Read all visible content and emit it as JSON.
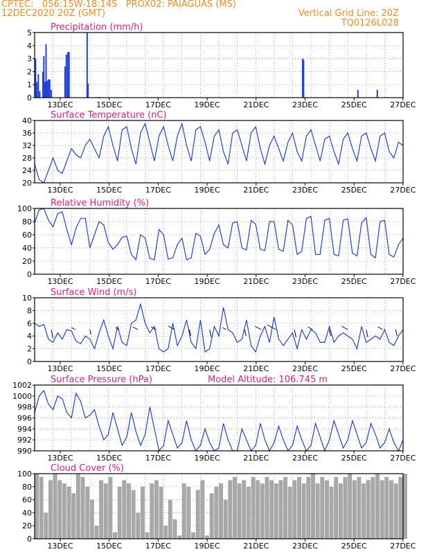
{
  "header": {
    "line1_left": "CPTEC:   056:15W-18:14S   PROX02: PAIAGUAS (MS)",
    "line2_left": "12DEC2020 20Z (GMT)",
    "line1_right": "Vertical Grid Line: 20Z",
    "line2_right": "TQ0126L028"
  },
  "colors": {
    "header": "#f08c28",
    "title": "#e0207a",
    "line": "#2040e0",
    "bar": "#2040e0",
    "cloud": "#a8a8a8",
    "grid": "#888888"
  },
  "x_ticks": [
    "13DEC",
    "15DEC",
    "17DEC",
    "19DEC",
    "21DEC",
    "23DEC",
    "25DEC",
    "27DEC"
  ],
  "chart_data": [
    {
      "type": "bar",
      "title": "Precipitation (mm/h)",
      "ylim": [
        0,
        5
      ],
      "yticks": [
        0,
        1,
        2,
        3,
        4,
        5
      ],
      "x": [
        0.05,
        0.12,
        0.2,
        0.28,
        0.45,
        0.5,
        0.55,
        0.62,
        0.68,
        0.75,
        0.82,
        0.9,
        1.65,
        1.72,
        1.8,
        1.87,
        2.85,
        2.9,
        3.45,
        3.55,
        14.55,
        14.6,
        17.55,
        18.6
      ],
      "values": [
        3.0,
        1.2,
        1.8,
        0.5,
        2.0,
        3.2,
        1.2,
        4.1,
        1.3,
        1.4,
        1.4,
        0.6,
        2.4,
        3.3,
        3.5,
        3.5,
        5.0,
        1.1,
        0.05,
        0.05,
        3.0,
        2.9,
        0.6,
        0.6
      ]
    },
    {
      "type": "line",
      "title": "Surface Temperature (nC)",
      "ylim": [
        20,
        40
      ],
      "yticks": [
        20,
        24,
        28,
        32,
        36,
        40
      ],
      "x": [
        0,
        0.25,
        0.5,
        0.75,
        1,
        1.25,
        1.5,
        1.75,
        2,
        2.25,
        2.5,
        2.75,
        3,
        3.25,
        3.5,
        3.75,
        4,
        4.25,
        4.5,
        4.75,
        5,
        5.25,
        5.5,
        5.75,
        6,
        6.25,
        6.5,
        6.75,
        7,
        7.25,
        7.5,
        7.75,
        8,
        8.25,
        8.5,
        8.75,
        9,
        9.25,
        9.5,
        9.75,
        10,
        10.25,
        10.5,
        10.75,
        11,
        11.25,
        11.5,
        11.75,
        12,
        12.25,
        12.5,
        12.75,
        13,
        13.25,
        13.5,
        13.75,
        14,
        14.25,
        14.5,
        14.75,
        15,
        15.25,
        15.5,
        15.75,
        16,
        16.25,
        16.5,
        16.75,
        17,
        17.25,
        17.5,
        17.75,
        18,
        18.25,
        18.5,
        18.75,
        19,
        19.25,
        19.5,
        19.75,
        20
      ],
      "values": [
        26,
        21,
        20,
        24,
        28,
        24,
        23,
        27,
        31,
        29,
        28,
        32,
        34,
        31,
        28,
        35,
        38,
        32,
        27,
        37,
        38,
        31,
        26,
        36,
        39,
        33,
        27,
        35,
        38,
        32,
        27,
        35,
        39,
        32,
        27,
        37,
        38,
        33,
        27,
        35,
        37,
        30,
        26,
        36,
        37,
        32,
        27,
        36,
        38,
        31,
        26,
        32,
        35,
        31,
        27,
        33,
        36,
        30,
        27,
        35,
        37,
        32,
        27,
        34,
        35,
        30,
        26,
        34,
        36,
        31,
        27,
        35,
        36,
        31,
        27,
        35,
        36,
        30,
        28,
        33,
        32
      ]
    },
    {
      "type": "line",
      "title": "Relative Humidity (%)",
      "ylim": [
        0,
        100
      ],
      "yticks": [
        0,
        20,
        40,
        60,
        80,
        100
      ],
      "x": [
        0,
        0.25,
        0.5,
        0.75,
        1,
        1.25,
        1.5,
        1.75,
        2,
        2.25,
        2.5,
        2.75,
        3,
        3.25,
        3.5,
        3.75,
        4,
        4.25,
        4.5,
        4.75,
        5,
        5.25,
        5.5,
        5.75,
        6,
        6.25,
        6.5,
        6.75,
        7,
        7.25,
        7.5,
        7.75,
        8,
        8.25,
        8.5,
        8.75,
        9,
        9.25,
        9.5,
        9.75,
        10,
        10.25,
        10.5,
        10.75,
        11,
        11.25,
        11.5,
        11.75,
        12,
        12.25,
        12.5,
        12.75,
        13,
        13.25,
        13.5,
        13.75,
        14,
        14.25,
        14.5,
        14.75,
        15,
        15.25,
        15.5,
        15.75,
        16,
        16.25,
        16.5,
        16.75,
        17,
        17.25,
        17.5,
        17.75,
        18,
        18.25,
        18.5,
        18.75,
        19,
        19.25,
        19.5,
        19.75,
        20
      ],
      "values": [
        78,
        98,
        100,
        82,
        72,
        92,
        95,
        68,
        45,
        70,
        85,
        85,
        40,
        60,
        80,
        75,
        48,
        38,
        45,
        56,
        58,
        30,
        22,
        60,
        55,
        24,
        22,
        68,
        60,
        23,
        25,
        45,
        55,
        22,
        25,
        62,
        58,
        30,
        38,
        62,
        75,
        45,
        40,
        78,
        80,
        40,
        37,
        82,
        76,
        38,
        36,
        80,
        80,
        38,
        35,
        82,
        75,
        30,
        35,
        85,
        88,
        30,
        30,
        82,
        85,
        30,
        28,
        82,
        84,
        32,
        28,
        78,
        86,
        30,
        25,
        80,
        82,
        30,
        26,
        45,
        55
      ]
    },
    {
      "type": "line",
      "title": "Surface Wind (m/s)",
      "ylim": [
        0,
        10
      ],
      "yticks": [
        0,
        2,
        4,
        6,
        8,
        10
      ],
      "x": [
        0,
        0.25,
        0.5,
        0.75,
        1,
        1.25,
        1.5,
        1.75,
        2,
        2.25,
        2.5,
        2.75,
        3,
        3.25,
        3.5,
        3.75,
        4,
        4.25,
        4.5,
        4.75,
        5,
        5.25,
        5.5,
        5.75,
        6,
        6.25,
        6.5,
        6.75,
        7,
        7.25,
        7.5,
        7.75,
        8,
        8.25,
        8.5,
        8.75,
        9,
        9.25,
        9.5,
        9.75,
        10,
        10.25,
        10.5,
        10.75,
        11,
        11.25,
        11.5,
        11.75,
        12,
        12.25,
        12.5,
        12.75,
        13,
        13.25,
        13.5,
        13.75,
        14,
        14.25,
        14.5,
        14.75,
        15,
        15.25,
        15.5,
        15.75,
        16,
        16.25,
        16.5,
        16.75,
        17,
        17.25,
        17.5,
        17.75,
        18,
        18.25,
        18.5,
        18.75,
        19,
        19.25,
        19.5,
        19.75,
        20
      ],
      "values": [
        6.0,
        5.5,
        5.8,
        3.5,
        3.0,
        4.5,
        3.5,
        5.0,
        4.8,
        3.2,
        2.8,
        4.0,
        3.5,
        2.0,
        4.5,
        6.5,
        4.0,
        2.0,
        5.5,
        3.0,
        2.5,
        6.0,
        6.5,
        9.0,
        6.0,
        4.5,
        5.5,
        2.0,
        1.5,
        2.0,
        6.0,
        2.5,
        4.0,
        6.5,
        3.0,
        2.0,
        6.5,
        1.5,
        2.0,
        5.5,
        4.0,
        8.5,
        5.0,
        4.5,
        3.0,
        3.5,
        6.5,
        2.5,
        1.5,
        4.0,
        5.5,
        3.0,
        7.0,
        3.5,
        2.5,
        3.5,
        4.5,
        2.0,
        5.0,
        3.5,
        5.0,
        4.5,
        3.0,
        3.0,
        5.5,
        3.0,
        4.0,
        4.5,
        4.0,
        3.5,
        2.0,
        5.5,
        3.0,
        3.5,
        4.0,
        3.5,
        5.0,
        3.0,
        2.5,
        4.0,
        5.0
      ]
    },
    {
      "type": "line",
      "title": "Surface Pressure (hPa)",
      "annotation": "Model Altitude: 106.745  m",
      "ylim": [
        990,
        1002
      ],
      "yticks": [
        990,
        992,
        994,
        996,
        998,
        1000,
        1002
      ],
      "x": [
        0,
        0.25,
        0.5,
        0.75,
        1,
        1.25,
        1.5,
        1.75,
        2,
        2.25,
        2.5,
        2.75,
        3,
        3.25,
        3.5,
        3.75,
        4,
        4.25,
        4.5,
        4.75,
        5,
        5.25,
        5.5,
        5.75,
        6,
        6.25,
        6.5,
        6.75,
        7,
        7.25,
        7.5,
        7.75,
        8,
        8.25,
        8.5,
        8.75,
        9,
        9.25,
        9.5,
        9.75,
        10,
        10.25,
        10.5,
        10.75,
        11,
        11.25,
        11.5,
        11.75,
        12,
        12.25,
        12.5,
        12.75,
        13,
        13.25,
        13.5,
        13.75,
        14,
        14.25,
        14.5,
        14.75,
        15,
        15.25,
        15.5,
        15.75,
        16,
        16.25,
        16.5,
        16.75,
        17,
        17.25,
        17.5,
        17.75,
        18,
        18.25,
        18.5,
        18.75,
        19,
        19.25,
        19.5,
        19.75,
        20
      ],
      "values": [
        997,
        1000,
        1001,
        998.5,
        997.5,
        1000,
        999.5,
        997,
        996,
        1000.5,
        999,
        996,
        996.5,
        997.5,
        994.5,
        992,
        993,
        997,
        994,
        991,
        992.5,
        997,
        993.5,
        991,
        993,
        998,
        994,
        990,
        991,
        995.5,
        993,
        990.5,
        991.5,
        995.5,
        992,
        989.5,
        991,
        994,
        991.5,
        989,
        990.5,
        995,
        992,
        989.5,
        990,
        994,
        992,
        989.5,
        991,
        995,
        992,
        990,
        991.5,
        994.5,
        992,
        989.5,
        991,
        994.5,
        992,
        990,
        991,
        995,
        992.5,
        990,
        992,
        995.5,
        993,
        990.5,
        992,
        995.5,
        993,
        990.5,
        991.5,
        995,
        993,
        990.5,
        991.5,
        994,
        991.5,
        990,
        992
      ]
    },
    {
      "type": "bar",
      "title": "Cloud Cover (%)",
      "ylim": [
        0,
        100
      ],
      "yticks": [
        0,
        20,
        40,
        60,
        80,
        100
      ],
      "x": [
        0,
        0.25,
        0.5,
        0.75,
        1,
        1.25,
        1.5,
        1.75,
        2,
        2.25,
        2.5,
        2.75,
        3,
        3.25,
        3.5,
        3.75,
        4,
        4.25,
        4.5,
        4.75,
        5,
        5.25,
        5.5,
        5.75,
        6,
        6.25,
        6.5,
        6.75,
        7,
        7.25,
        7.5,
        7.75,
        8,
        8.25,
        8.5,
        8.75,
        9,
        9.25,
        9.5,
        9.75,
        10,
        10.25,
        10.5,
        10.75,
        11,
        11.25,
        11.5,
        11.75,
        12,
        12.25,
        12.5,
        12.75,
        13,
        13.25,
        13.5,
        13.75,
        14,
        14.25,
        14.5,
        14.75,
        15,
        15.25,
        15.5,
        15.75,
        16,
        16.25,
        16.5,
        16.75,
        17,
        17.25,
        17.5,
        17.75,
        18,
        18.25,
        18.5,
        18.75,
        19,
        19.25,
        19.5,
        19.75,
        20
      ],
      "values": [
        100,
        95,
        40,
        90,
        100,
        90,
        85,
        80,
        70,
        100,
        95,
        80,
        60,
        20,
        90,
        85,
        95,
        10,
        80,
        90,
        85,
        75,
        40,
        80,
        10,
        85,
        90,
        80,
        20,
        60,
        30,
        5,
        85,
        80,
        10,
        75,
        90,
        5,
        70,
        80,
        85,
        60,
        90,
        95,
        85,
        90,
        80,
        95,
        90,
        85,
        95,
        90,
        85,
        90,
        95,
        80,
        90,
        95,
        85,
        95,
        100,
        85,
        95,
        90,
        80,
        95,
        85,
        95,
        100,
        90,
        95,
        85,
        90,
        95,
        100,
        90,
        95,
        90,
        85,
        95,
        100
      ]
    }
  ]
}
